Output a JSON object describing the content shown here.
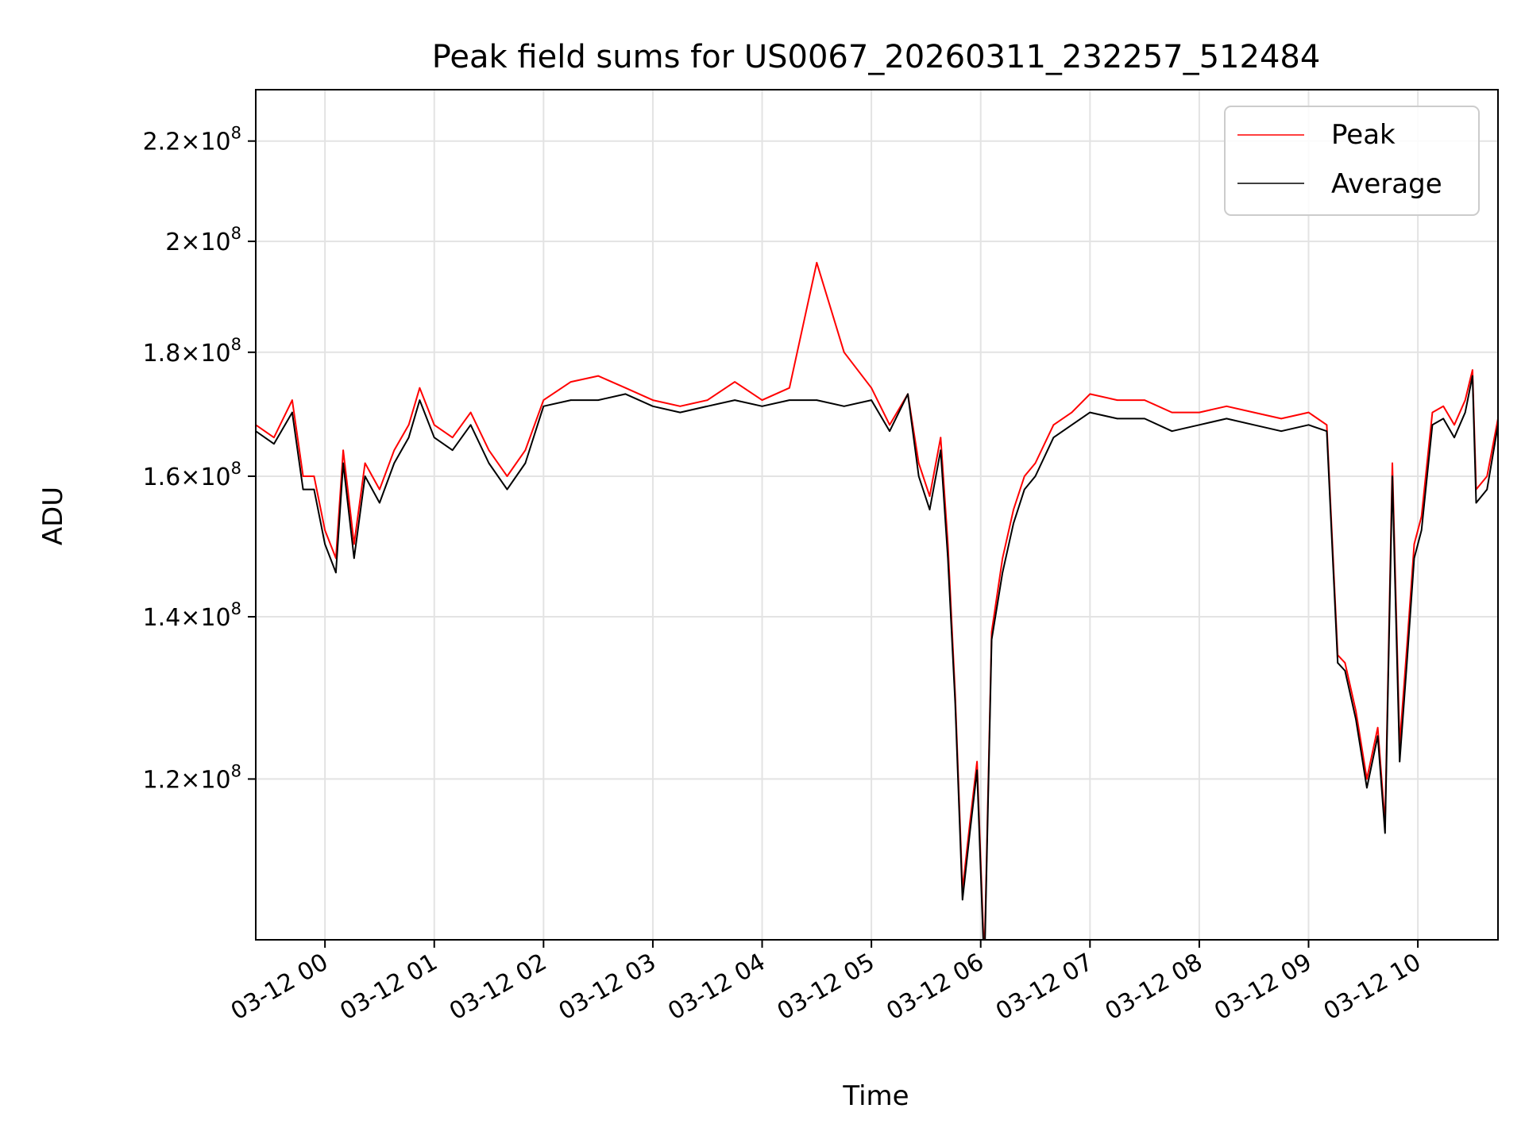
{
  "chart_data": {
    "type": "line",
    "title": "Peak field sums for US0067_20260311_232257_512484",
    "xlabel": "Time",
    "ylabel": "ADU",
    "y_scale": "log",
    "ylim": [
      103000000,
      231000000
    ],
    "xlim": [
      "2026-03-11 23:22",
      "2026-03-12 10:44"
    ],
    "grid": true,
    "legend_position": "top-right",
    "x_ticks": [
      "03-12 00",
      "03-12 01",
      "03-12 02",
      "03-12 03",
      "03-12 04",
      "03-12 05",
      "03-12 06",
      "03-12 07",
      "03-12 08",
      "03-12 09",
      "03-12 10"
    ],
    "y_ticks": [
      {
        "value": 120000000,
        "mantissa": "1.2",
        "exp": "8"
      },
      {
        "value": 140000000,
        "mantissa": "1.4",
        "exp": "8"
      },
      {
        "value": 160000000,
        "mantissa": "1.6",
        "exp": "8"
      },
      {
        "value": 180000000,
        "mantissa": "1.8",
        "exp": "8"
      },
      {
        "value": 200000000,
        "mantissa": "2",
        "exp": "8"
      },
      {
        "value": 220000000,
        "mantissa": "2.2",
        "exp": "8"
      }
    ],
    "x": [
      "2026-03-11 23:22",
      "2026-03-11 23:32",
      "2026-03-11 23:42",
      "2026-03-11 23:48",
      "2026-03-11 23:54",
      "2026-03-12 00:00",
      "2026-03-12 00:06",
      "2026-03-12 00:10",
      "2026-03-12 00:16",
      "2026-03-12 00:22",
      "2026-03-12 00:30",
      "2026-03-12 00:38",
      "2026-03-12 00:46",
      "2026-03-12 00:52",
      "2026-03-12 01:00",
      "2026-03-12 01:10",
      "2026-03-12 01:20",
      "2026-03-12 01:30",
      "2026-03-12 01:40",
      "2026-03-12 01:50",
      "2026-03-12 02:00",
      "2026-03-12 02:15",
      "2026-03-12 02:30",
      "2026-03-12 02:45",
      "2026-03-12 03:00",
      "2026-03-12 03:15",
      "2026-03-12 03:30",
      "2026-03-12 03:45",
      "2026-03-12 04:00",
      "2026-03-12 04:15",
      "2026-03-12 04:30",
      "2026-03-12 04:45",
      "2026-03-12 05:00",
      "2026-03-12 05:10",
      "2026-03-12 05:20",
      "2026-03-12 05:26",
      "2026-03-12 05:32",
      "2026-03-12 05:38",
      "2026-03-12 05:42",
      "2026-03-12 05:46",
      "2026-03-12 05:50",
      "2026-03-12 05:54",
      "2026-03-12 05:58",
      "2026-03-12 06:02",
      "2026-03-12 06:06",
      "2026-03-12 06:12",
      "2026-03-12 06:18",
      "2026-03-12 06:24",
      "2026-03-12 06:30",
      "2026-03-12 06:40",
      "2026-03-12 06:50",
      "2026-03-12 07:00",
      "2026-03-12 07:15",
      "2026-03-12 07:30",
      "2026-03-12 07:45",
      "2026-03-12 08:00",
      "2026-03-12 08:15",
      "2026-03-12 08:30",
      "2026-03-12 08:45",
      "2026-03-12 09:00",
      "2026-03-12 09:10",
      "2026-03-12 09:16",
      "2026-03-12 09:20",
      "2026-03-12 09:26",
      "2026-03-12 09:32",
      "2026-03-12 09:38",
      "2026-03-12 09:42",
      "2026-03-12 09:46",
      "2026-03-12 09:50",
      "2026-03-12 09:54",
      "2026-03-12 09:58",
      "2026-03-12 10:02",
      "2026-03-12 10:08",
      "2026-03-12 10:14",
      "2026-03-12 10:20",
      "2026-03-12 10:26",
      "2026-03-12 10:30",
      "2026-03-12 10:32",
      "2026-03-12 10:38",
      "2026-03-12 10:44"
    ],
    "series": [
      {
        "name": "Peak",
        "color": "#ff0000",
        "values": [
          168,
          166,
          172,
          160,
          160,
          152,
          148,
          164,
          150,
          162,
          158,
          164,
          168,
          174,
          168,
          166,
          170,
          164,
          160,
          164,
          172,
          175,
          176,
          174,
          172,
          171,
          172,
          175,
          172,
          174,
          196,
          180,
          174,
          168,
          173,
          162,
          157,
          166,
          150,
          130,
          108,
          115,
          122,
          101,
          138,
          148,
          155,
          160,
          162,
          168,
          170,
          173,
          172,
          172,
          170,
          170,
          171,
          170,
          169,
          170,
          168,
          135,
          134,
          128,
          120,
          126,
          115,
          162,
          124,
          136,
          150,
          154,
          170,
          171,
          168,
          172,
          177,
          158,
          160,
          169
        ]
      },
      {
        "name": "Average",
        "color": "#000000",
        "values": [
          167,
          165,
          170,
          158,
          158,
          150,
          146,
          162,
          148,
          160,
          156,
          162,
          166,
          172,
          166,
          164,
          168,
          162,
          158,
          162,
          171,
          172,
          172,
          173,
          171,
          170,
          171,
          172,
          171,
          172,
          172,
          171,
          172,
          167,
          173,
          160,
          155,
          164,
          148,
          129,
          107,
          114,
          121,
          100,
          137,
          146,
          153,
          158,
          160,
          166,
          168,
          170,
          169,
          169,
          167,
          168,
          169,
          168,
          167,
          168,
          167,
          134,
          133,
          127,
          119,
          125,
          114,
          160,
          122,
          134,
          148,
          152,
          168,
          169,
          166,
          170,
          176,
          156,
          158,
          168
        ]
      }
    ],
    "values_unit": "1e6 ADU"
  }
}
